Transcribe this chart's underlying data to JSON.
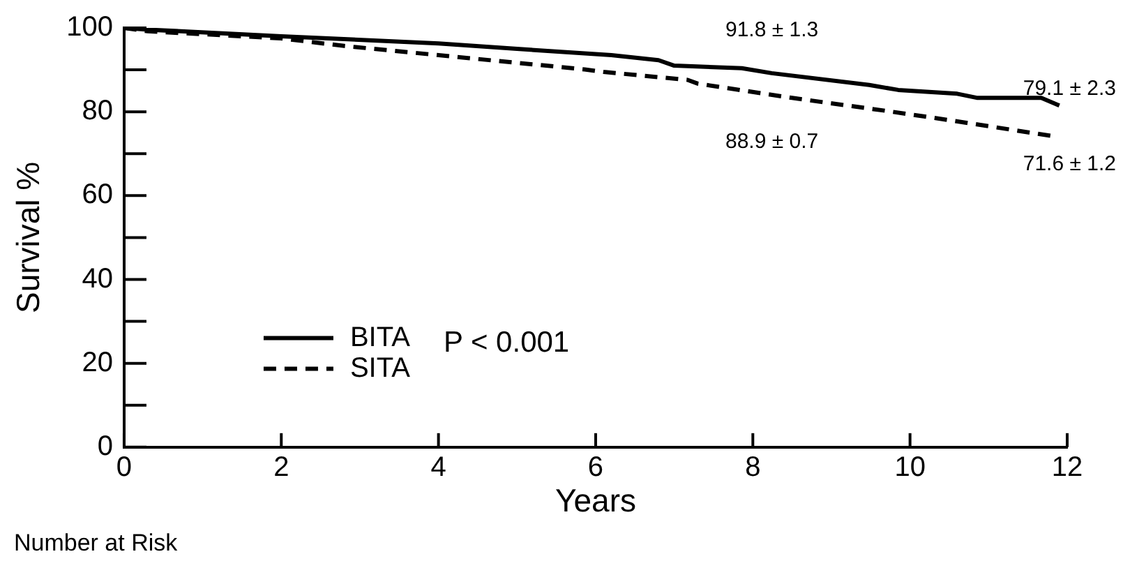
{
  "chart_data": {
    "type": "line",
    "xlabel": "Years",
    "ylabel": "Survival %",
    "xlim": [
      0,
      12
    ],
    "xticks": [
      0,
      2,
      4,
      6,
      8,
      10,
      12
    ],
    "ylim": [
      0,
      100
    ],
    "yticks": [
      0,
      {
        "value": 10,
        "label": null
      },
      20,
      {
        "value": 30,
        "label": null
      },
      40,
      {
        "value": 50,
        "label": null
      },
      60,
      {
        "value": 70,
        "label": null
      },
      80,
      {
        "value": 90,
        "label": null
      },
      100
    ],
    "grid": false,
    "legend": "left",
    "marker": "none",
    "series": [
      {
        "name": "BITA",
        "color": "#000000",
        "line_style": "solid",
        "x": [
          0,
          0.3,
          2,
          4,
          5,
          6.2,
          6.8,
          7,
          7.86,
          8.24,
          9.48,
          9.85,
          10.6,
          10.86,
          11.67,
          11.9
        ],
        "values": [
          100,
          99.6,
          98,
          96.3,
          95,
          93.5,
          92.3,
          91,
          90.4,
          89.2,
          86.4,
          85.2,
          84.3,
          83.3,
          83.3,
          81.5
        ]
      },
      {
        "name": "SITA",
        "color": "#000000",
        "line_style": "dashed",
        "x": [
          0,
          0.3,
          2,
          2.8,
          4,
          5.86,
          6.1,
          7.17,
          7.3,
          8.5,
          9.7,
          10.5,
          11.85
        ],
        "values": [
          100,
          99.2,
          97.5,
          95.7,
          93.5,
          90.1,
          89.5,
          87.6,
          86.7,
          83.3,
          80.2,
          78,
          74.1
        ]
      }
    ],
    "annotations": [
      "91.8 ± 1.3",
      "88.9 ± 0.7",
      "79.1 ± 2.3",
      "71.6 ± 1.2",
      "P < 0.001",
      "Number at Risk"
    ]
  }
}
